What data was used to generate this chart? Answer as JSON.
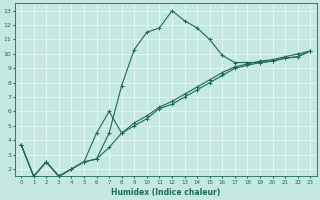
{
  "xlabel": "Humidex (Indice chaleur)",
  "ylabel": "",
  "xlim": [
    -0.5,
    23.5
  ],
  "ylim": [
    1.5,
    13.5
  ],
  "xticks": [
    0,
    1,
    2,
    3,
    4,
    5,
    6,
    7,
    8,
    9,
    10,
    11,
    12,
    13,
    14,
    15,
    16,
    17,
    18,
    19,
    20,
    21,
    22,
    23
  ],
  "yticks": [
    2,
    3,
    4,
    5,
    6,
    7,
    8,
    9,
    10,
    11,
    12,
    13
  ],
  "bg_color": "#c5e8e0",
  "line_color": "#1a6b5a",
  "grid_color": "#e8f8f4",
  "series1_x": [
    0,
    1,
    2,
    3,
    4,
    5,
    6,
    7,
    8,
    9,
    10,
    11,
    12,
    13,
    14,
    15,
    16,
    17,
    18,
    19,
    20,
    21,
    22,
    23
  ],
  "series1_y": [
    3.7,
    1.5,
    2.5,
    1.5,
    2.0,
    2.5,
    2.7,
    4.5,
    7.8,
    10.3,
    11.5,
    11.8,
    13.0,
    12.3,
    11.8,
    11.0,
    9.9,
    9.4,
    9.4,
    9.4,
    9.5,
    9.7,
    9.8,
    10.2
  ],
  "series2_x": [
    0,
    1,
    2,
    3,
    4,
    5,
    6,
    7,
    8,
    9,
    10,
    11,
    12,
    13,
    14,
    15,
    16,
    17,
    18,
    19,
    20,
    21,
    22,
    23
  ],
  "series2_y": [
    3.7,
    1.5,
    2.5,
    1.5,
    2.0,
    2.5,
    2.7,
    3.5,
    4.5,
    5.0,
    5.5,
    6.2,
    6.5,
    7.0,
    7.5,
    8.0,
    8.5,
    9.0,
    9.2,
    9.4,
    9.5,
    9.7,
    9.8,
    10.2
  ],
  "series3_x": [
    0,
    1,
    2,
    3,
    4,
    5,
    6,
    7,
    8,
    9,
    10,
    11,
    12,
    13,
    14,
    15,
    16,
    17,
    18,
    19,
    20,
    21,
    22,
    23
  ],
  "series3_y": [
    3.7,
    1.5,
    2.5,
    1.5,
    2.0,
    2.5,
    4.5,
    6.0,
    4.5,
    5.2,
    5.7,
    6.3,
    6.7,
    7.2,
    7.7,
    8.2,
    8.7,
    9.1,
    9.3,
    9.5,
    9.6,
    9.8,
    10.0,
    10.2
  ]
}
